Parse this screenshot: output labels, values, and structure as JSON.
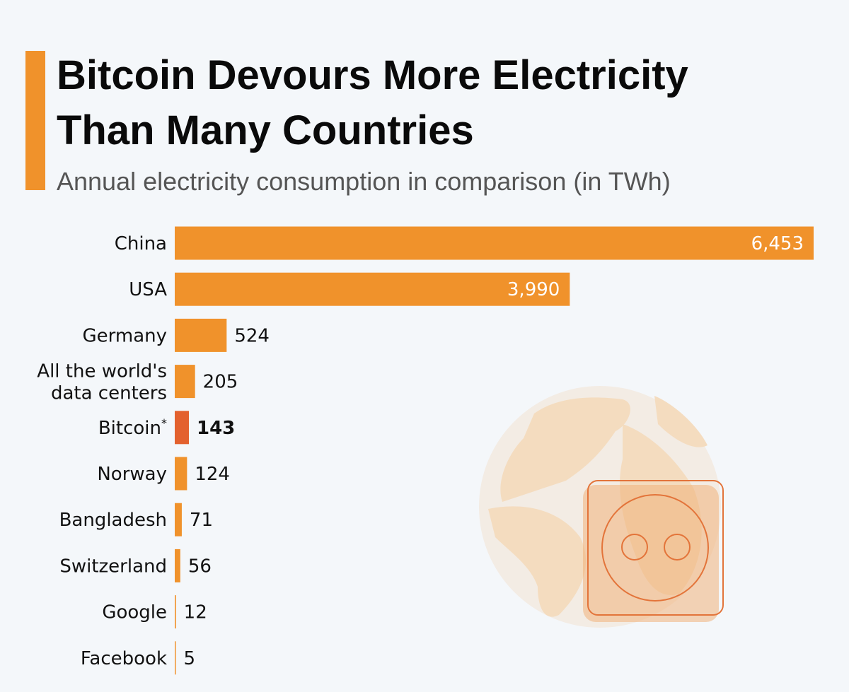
{
  "title_line1": "Bitcoin Devours More Electricity",
  "title_line2": "Than Many Countries",
  "subtitle": "Annual electricity consumption in comparison (in TWh)",
  "colors": {
    "bar": "#f0922b",
    "highlight": "#e3612e",
    "accent": "#f0922b",
    "background": "#f4f7fa"
  },
  "illustration": {
    "icon": "globe-with-power-socket-icon"
  },
  "chart_data": {
    "type": "bar",
    "orientation": "horizontal",
    "categories": [
      "China",
      "USA",
      "Germany",
      "All the world's data centers",
      "Bitcoin*",
      "Norway",
      "Bangladesh",
      "Switzerland",
      "Google",
      "Facebook"
    ],
    "values": [
      6453,
      3990,
      524,
      205,
      143,
      124,
      71,
      56,
      12,
      5
    ],
    "data_labels": [
      "6,453",
      "3,990",
      "524",
      "205",
      "143",
      "124",
      "71",
      "56",
      "12",
      "5"
    ],
    "highlight": "Bitcoin*",
    "title": "Bitcoin Devours More Electricity Than Many Countries",
    "subtitle": "Annual electricity consumption in comparison (in TWh)",
    "unit": "TWh",
    "xlim": [
      0,
      6453
    ],
    "grid": false
  }
}
